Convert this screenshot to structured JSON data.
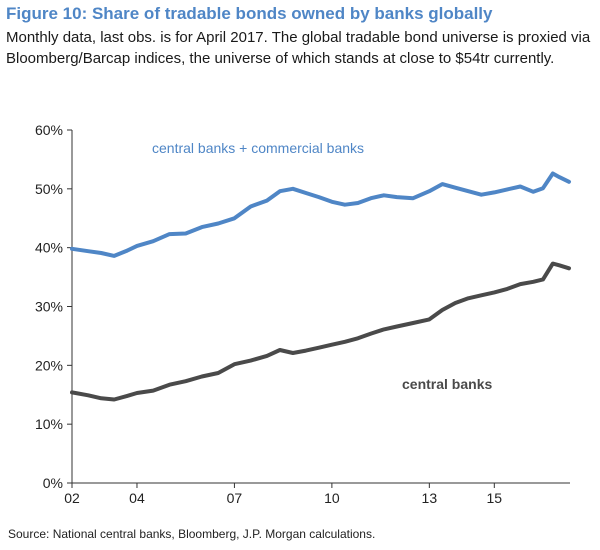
{
  "figure": {
    "title": "Figure 10: Share of tradable bonds owned by banks globally",
    "subtitle": "Monthly data, last obs. is for April 2017. The global tradable bond universe is proxied via Bloomberg/Barcap indices, the universe of which stands at close to $54tr currently.",
    "source": "Source: National central banks, Bloomberg, J.P. Morgan calculations."
  },
  "colors": {
    "title": "#4f86c6",
    "series_total": "#4f86c6",
    "series_central": "#4a4a4a"
  },
  "chart_data": {
    "type": "line",
    "title": "Figure 10: Share of tradable bonds owned by banks globally",
    "xlabel": "",
    "ylabel": "",
    "xlim": [
      2002.0,
      2017.33
    ],
    "ylim": [
      0,
      60
    ],
    "yticks": [
      "0%",
      "10%",
      "20%",
      "30%",
      "40%",
      "50%",
      "60%"
    ],
    "xticks": [
      {
        "label": "02",
        "x": 2002
      },
      {
        "label": "04",
        "x": 2004
      },
      {
        "label": "07",
        "x": 2007
      },
      {
        "label": "10",
        "x": 2010
      },
      {
        "label": "13",
        "x": 2013
      },
      {
        "label": "15",
        "x": 2015
      }
    ],
    "grid": false,
    "annotations": [
      {
        "text": "central banks  +  commercial banks",
        "series": 0
      },
      {
        "text": "central banks",
        "series": 1
      }
    ],
    "series": [
      {
        "name": "central banks + commercial banks",
        "x": [
          2002.0,
          2002.5,
          2002.9,
          2003.3,
          2003.7,
          2004.0,
          2004.5,
          2005.0,
          2005.5,
          2006.0,
          2006.5,
          2007.0,
          2007.5,
          2008.0,
          2008.4,
          2008.8,
          2009.2,
          2009.6,
          2010.0,
          2010.4,
          2010.8,
          2011.2,
          2011.6,
          2012.0,
          2012.5,
          2013.0,
          2013.4,
          2013.8,
          2014.2,
          2014.6,
          2015.0,
          2015.4,
          2015.8,
          2016.2,
          2016.5,
          2016.8,
          2017.0,
          2017.3
        ],
        "values": [
          39.8,
          39.4,
          39.1,
          38.6,
          39.5,
          40.3,
          41.1,
          42.3,
          42.4,
          43.5,
          44.1,
          45.0,
          47.0,
          48.0,
          49.6,
          50.0,
          49.3,
          48.6,
          47.8,
          47.3,
          47.6,
          48.4,
          48.9,
          48.6,
          48.4,
          49.6,
          50.8,
          50.2,
          49.6,
          49.0,
          49.4,
          49.9,
          50.4,
          49.5,
          50.1,
          52.6,
          52.0,
          51.2
        ]
      },
      {
        "name": "central banks",
        "x": [
          2002.0,
          2002.5,
          2002.9,
          2003.3,
          2003.7,
          2004.0,
          2004.5,
          2005.0,
          2005.5,
          2006.0,
          2006.5,
          2007.0,
          2007.5,
          2008.0,
          2008.4,
          2008.8,
          2009.2,
          2009.6,
          2010.0,
          2010.4,
          2010.8,
          2011.2,
          2011.6,
          2012.0,
          2012.5,
          2013.0,
          2013.4,
          2013.8,
          2014.2,
          2014.6,
          2015.0,
          2015.4,
          2015.8,
          2016.2,
          2016.5,
          2016.8,
          2017.0,
          2017.3
        ],
        "values": [
          15.4,
          14.9,
          14.4,
          14.2,
          14.8,
          15.3,
          15.7,
          16.7,
          17.3,
          18.1,
          18.7,
          20.2,
          20.8,
          21.6,
          22.6,
          22.1,
          22.5,
          23.0,
          23.5,
          24.0,
          24.6,
          25.4,
          26.1,
          26.6,
          27.2,
          27.8,
          29.4,
          30.6,
          31.4,
          31.9,
          32.4,
          33.0,
          33.8,
          34.2,
          34.6,
          37.3,
          37.0,
          36.5
        ]
      }
    ]
  }
}
